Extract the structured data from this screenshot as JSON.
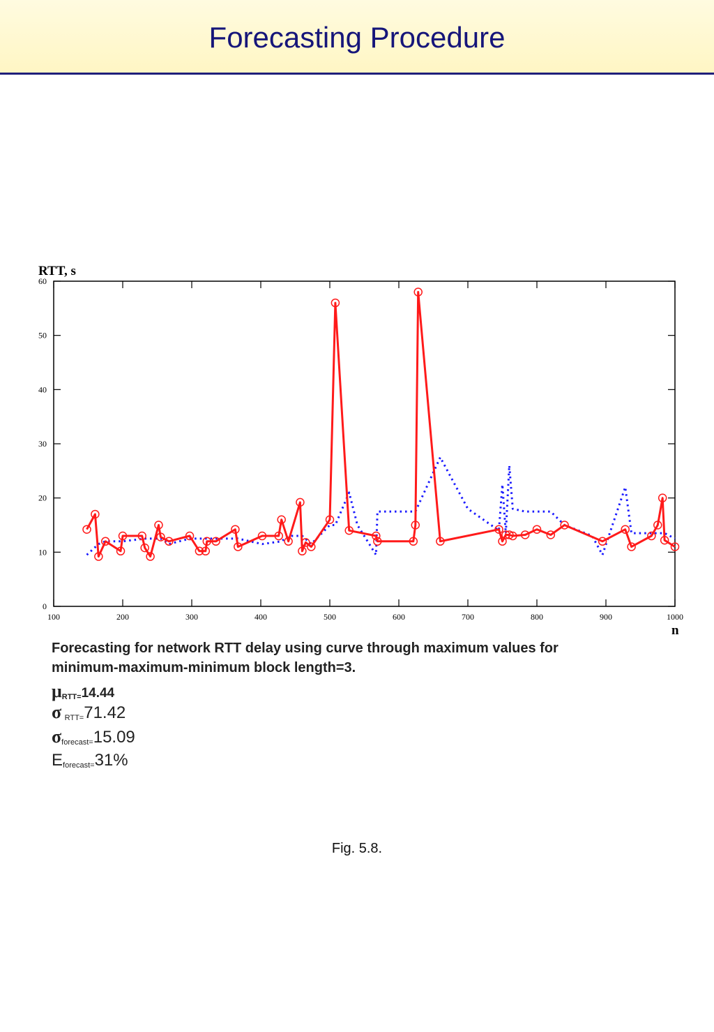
{
  "header": {
    "title": "Forecasting Procedure"
  },
  "chart_data": {
    "type": "line",
    "ylabel": "RTT, s",
    "xlabel": "n",
    "xlim": [
      100,
      1000
    ],
    "ylim": [
      0,
      60
    ],
    "x_ticks": [
      100,
      200,
      300,
      400,
      500,
      600,
      700,
      800,
      900,
      1000
    ],
    "y_ticks": [
      0,
      10,
      20,
      30,
      40,
      50,
      60
    ],
    "grid": false,
    "series": [
      {
        "style": "solid",
        "color": "#ff1a1a",
        "markers": "circle",
        "x": [
          148,
          160,
          165,
          175,
          197,
          200,
          228,
          232,
          240,
          252,
          255,
          267,
          297,
          311,
          320,
          322,
          335,
          363,
          367,
          402,
          426,
          430,
          440,
          457,
          460,
          465,
          473,
          500,
          508,
          528,
          567,
          569,
          621,
          624,
          628,
          660,
          745,
          750,
          755,
          760,
          765,
          783,
          800,
          820,
          840,
          895,
          928,
          937,
          966,
          975,
          982,
          985,
          1000
        ],
        "y": [
          14.2,
          17,
          9.2,
          12,
          10.2,
          13,
          13,
          10.8,
          9.2,
          15,
          12.8,
          12,
          13,
          10.2,
          10.2,
          12,
          12,
          14.2,
          11,
          13,
          13,
          16,
          12,
          19.2,
          10.2,
          11.8,
          11,
          16,
          56,
          14,
          13,
          12,
          12,
          15,
          58,
          12,
          14.2,
          12,
          13.2,
          13.2,
          13,
          13.2,
          14.2,
          13.2,
          15,
          12,
          14.2,
          11,
          13,
          15,
          20,
          12.2,
          11
        ]
      },
      {
        "style": "dotted",
        "color": "#1a1aff",
        "markers": "none",
        "x": [
          148,
          165,
          175,
          200,
          232,
          255,
          267,
          297,
          322,
          363,
          367,
          402,
          430,
          440,
          460,
          473,
          500,
          508,
          528,
          540,
          567,
          569,
          624,
          660,
          700,
          745,
          750,
          755,
          760,
          765,
          783,
          820,
          840,
          880,
          895,
          928,
          937,
          966,
          975,
          985,
          1000
        ],
        "y": [
          9.5,
          11.5,
          12,
          12,
          12.5,
          12.5,
          11.5,
          12.5,
          12.5,
          12.5,
          12.5,
          11.5,
          12,
          13,
          13,
          11.5,
          15,
          15,
          21,
          15,
          9.5,
          17.5,
          17.5,
          27.5,
          18,
          14,
          22.5,
          13.5,
          26,
          18,
          17.5,
          17.5,
          15,
          13,
          9.5,
          22,
          13.5,
          13.5,
          13.5,
          13.5,
          12.5
        ]
      }
    ]
  },
  "caption": {
    "line1": "Forecasting for network RTT delay using curve through maximum values for",
    "line2": "minimum-maximum-minimum block length=3."
  },
  "stats": {
    "mu": {
      "symbol": "μ",
      "subscript": "RTT=",
      "value": "14.44"
    },
    "sigma_rtt": {
      "symbol": "σ",
      "subscript": "RTT=",
      "value": "71.42"
    },
    "sigma_forecast": {
      "symbol": "σ",
      "subscript": "forecast=",
      "value": "15.09"
    },
    "e_forecast": {
      "symbol": "E",
      "subscript": "forecast=",
      "value": "31%"
    }
  },
  "figure_label": "Fig. 5.8."
}
